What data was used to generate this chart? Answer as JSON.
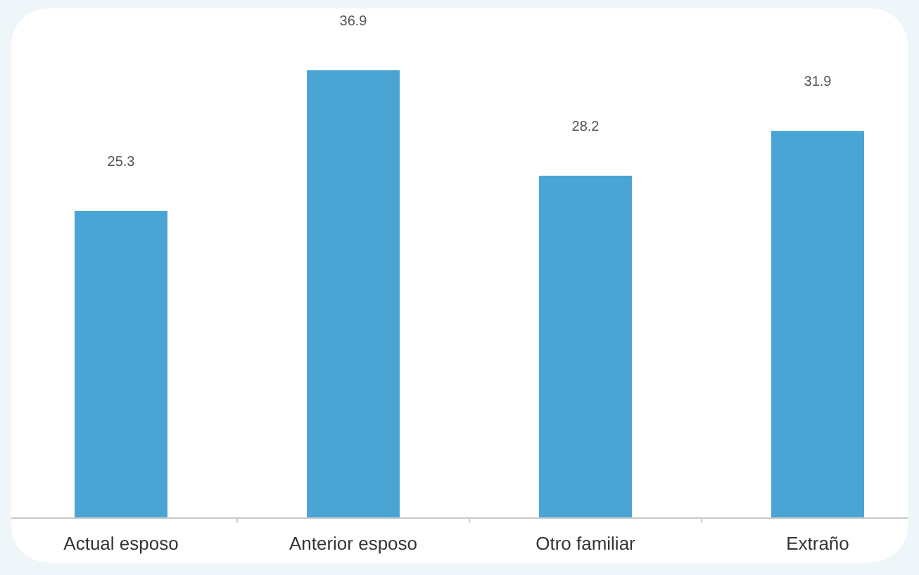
{
  "chart_data": {
    "type": "bar",
    "categories": [
      "Actual esposo",
      "Anterior esposo",
      "Otro familiar",
      "Extraño"
    ],
    "values": [
      25.3,
      36.9,
      28.2,
      31.9
    ],
    "color": "#4aa5d4",
    "data_labels": true
  }
}
